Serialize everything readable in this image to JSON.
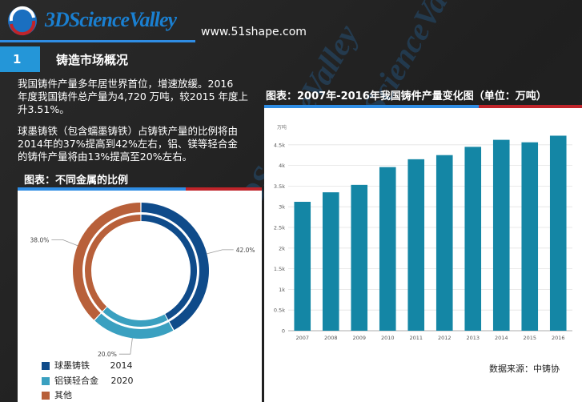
{
  "header": {
    "logo_text": "3DScienceValley",
    "url": "www.51shape.com"
  },
  "section": {
    "number": "1",
    "title": "铸造市场概况"
  },
  "paragraphs": {
    "p1_line1": "我国铸件产量多年居世界首位，增速放缓。2016",
    "p1_line2": "年度我国铸件总产量为4,720 万吨，较2015 年度上",
    "p1_line3": "升3.51%。",
    "p2_line1": "球墨铸铁（包含蠕墨铸铁）占铸铁产量的比例将由",
    "p2_line2": "2014年的37%提高到42%左右，铝、镁等轻合金",
    "p2_line3": "的铸件产量将由13%提高至20%左右。"
  },
  "left_chart_title": "图表：不同金属的比例",
  "right_chart_title": "图表：2007年-2016年我国铸件产量变化图（单位：万吨）",
  "source": "数据来源：中铸协",
  "colors": {
    "blue_dark": "#0f4b8a",
    "teal": "#3aa0c0",
    "orange": "#b8603a",
    "bar": "#1486a5",
    "accent_blue": "#2f8de4",
    "accent_red": "#c0242a"
  },
  "chart_data": [
    {
      "type": "pie",
      "variant": "double-donut",
      "rings": [
        "2014",
        "2020"
      ],
      "categories": [
        "球墨铸铁",
        "铝镁轻合金",
        "其他"
      ],
      "labels": [
        "42.0%",
        "20.0%",
        "38.0%"
      ],
      "values": [
        42,
        20,
        38
      ],
      "legend": [
        {
          "name": "球墨铸铁",
          "ring": "2014"
        },
        {
          "name": "铝镁轻合金",
          "ring": "2020"
        },
        {
          "name": "其他",
          "ring": ""
        }
      ]
    },
    {
      "type": "bar",
      "categories": [
        "2007",
        "2008",
        "2009",
        "2010",
        "2011",
        "2012",
        "2013",
        "2014",
        "2015",
        "2016"
      ],
      "values": [
        3120,
        3350,
        3530,
        3960,
        4150,
        4250,
        4450,
        4620,
        4560,
        4720
      ],
      "ylabel": "万吨",
      "ylim": [
        0,
        5000
      ],
      "yticks": [
        "0",
        "0.5k",
        "1k",
        "1.5k",
        "2k",
        "2.5k",
        "3k",
        "3.5k",
        "4k",
        "4.5k"
      ],
      "grid": true
    }
  ]
}
